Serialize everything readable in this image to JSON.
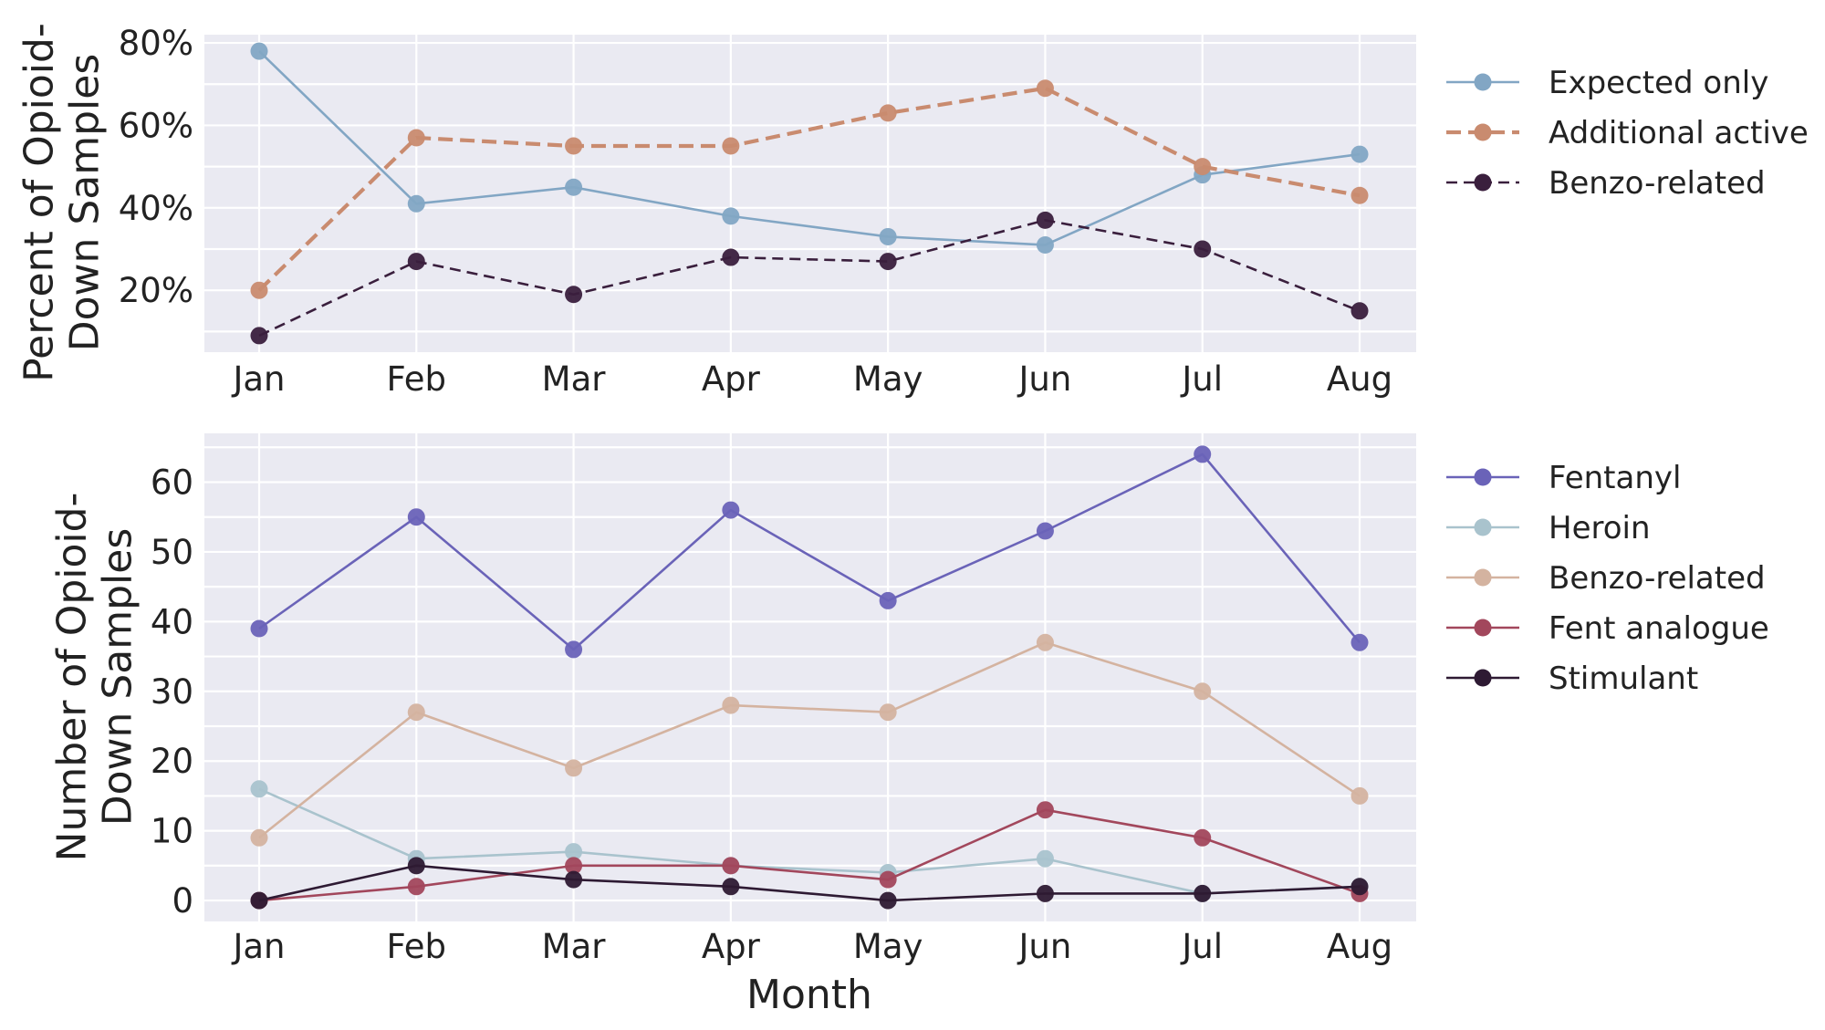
{
  "x_label": "Month",
  "chart_data": [
    {
      "type": "line",
      "categories": [
        "Jan",
        "Feb",
        "Mar",
        "Apr",
        "May",
        "Jun",
        "Jul",
        "Aug"
      ],
      "ylabel": [
        "Percent of Opioid-",
        "Down Samples"
      ],
      "xlabel": "",
      "ylim": [
        5,
        82
      ],
      "yticks": [
        20,
        40,
        60,
        80
      ],
      "ytick_labels": [
        "20%",
        "40%",
        "60%",
        "80%"
      ],
      "grid": true,
      "legend_position": "right",
      "series": [
        {
          "name": "Expected only",
          "values": [
            78,
            41,
            45,
            38,
            33,
            31,
            48,
            53
          ],
          "color": "#82a6c4",
          "dash": "solid",
          "width": 2.6
        },
        {
          "name": "Additional active",
          "values": [
            20,
            57,
            55,
            55,
            63,
            69,
            50,
            43
          ],
          "color": "#c98b6f",
          "dash": "dashed-bold",
          "width": 4.2
        },
        {
          "name": "Benzo-related",
          "values": [
            9,
            27,
            19,
            28,
            27,
            37,
            30,
            15
          ],
          "color": "#3a1f3d",
          "dash": "dashed",
          "width": 2.6
        }
      ]
    },
    {
      "type": "line",
      "categories": [
        "Jan",
        "Feb",
        "Mar",
        "Apr",
        "May",
        "Jun",
        "Jul",
        "Aug"
      ],
      "ylabel": [
        "Number of Opioid-",
        "Down Samples"
      ],
      "xlabel": "Month",
      "ylim": [
        -3,
        67
      ],
      "yticks": [
        0,
        10,
        20,
        30,
        40,
        50,
        60
      ],
      "ytick_labels": [
        "0",
        "10",
        "20",
        "30",
        "40",
        "50",
        "60"
      ],
      "grid": true,
      "legend_position": "right",
      "series": [
        {
          "name": "Fentanyl",
          "values": [
            39,
            55,
            36,
            56,
            43,
            53,
            64,
            37
          ],
          "color": "#6a63b8",
          "dash": "solid",
          "width": 2.6
        },
        {
          "name": "Heroin",
          "values": [
            16,
            6,
            7,
            5,
            4,
            6,
            1,
            2
          ],
          "color": "#a9c3cd",
          "dash": "solid",
          "width": 2.6
        },
        {
          "name": "Benzo-related",
          "values": [
            9,
            27,
            19,
            28,
            27,
            37,
            30,
            15
          ],
          "color": "#d4b3a0",
          "dash": "solid",
          "width": 2.6
        },
        {
          "name": "Fent analogue",
          "values": [
            0,
            2,
            5,
            5,
            3,
            13,
            9,
            1
          ],
          "color": "#a2475c",
          "dash": "solid",
          "width": 2.6
        },
        {
          "name": "Stimulant",
          "values": [
            0,
            5,
            3,
            2,
            0,
            1,
            1,
            2
          ],
          "color": "#2e1a33",
          "dash": "solid",
          "width": 2.6
        }
      ]
    }
  ]
}
